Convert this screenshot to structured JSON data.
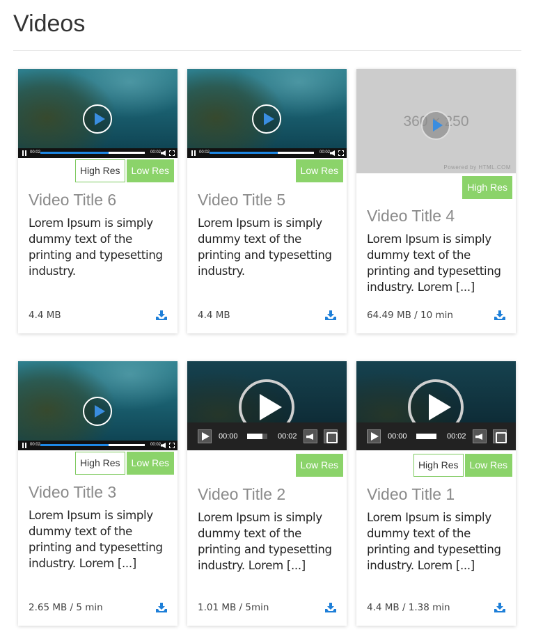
{
  "page": {
    "title": "Videos"
  },
  "colors": {
    "badge_green": "#8bd36a",
    "play_blue": "#3a8de0",
    "download_blue": "#1e7fd8"
  },
  "cards": [
    {
      "title": "Video Title 6",
      "description": "Lorem Ipsum is simply dummy text of the printing and typesetting industry.",
      "meta": "4.4 MB",
      "high_res": "High Res",
      "low_res": "Low Res",
      "player_time_start": "00:02",
      "player_time_end": "00:02",
      "progress": 0.65
    },
    {
      "title": "Video Title 5",
      "description": "Lorem Ipsum is simply dummy text of the printing and typesetting industry.",
      "meta": "4.4 MB",
      "low_res": "Low Res",
      "player_time_start": "00:02",
      "player_time_end": "00:02",
      "progress": 0.65
    },
    {
      "title": "Video Title 4",
      "description": "Lorem Ipsum is simply dummy text of the printing and typesetting industry. Lorem [...]",
      "meta": "64.49 MB / 10 min",
      "high_res": "High Res",
      "placeholder_text": "360 × 250",
      "powered_by": "Powered by HTML.COM"
    },
    {
      "title": "Video Title 3",
      "description": "Lorem Ipsum is simply dummy text of the printing and typesetting industry. Lorem [...]",
      "meta": "2.65 MB / 5 min",
      "high_res": "High Res",
      "low_res": "Low Res",
      "player_time_start": "00:02",
      "player_time_end": "00:02",
      "progress": 0.65
    },
    {
      "title": "Video Title 2",
      "description": "Lorem Ipsum is simply dummy text of the printing and typesetting industry. Lorem [...]",
      "meta": "1.01 MB / 5min",
      "low_res": "Low Res",
      "player_time_start": "00:00",
      "player_time_end": "00:02",
      "progress": 0.75
    },
    {
      "title": "Video Title 1",
      "description": "Lorem Ipsum is simply dummy text of the printing and typesetting industry. Lorem [...]",
      "meta": "4.4 MB / 1.38 min",
      "high_res": "High Res",
      "low_res": "Low Res",
      "player_time_start": "00:00",
      "player_time_end": "00:02",
      "progress": 1.0
    }
  ]
}
